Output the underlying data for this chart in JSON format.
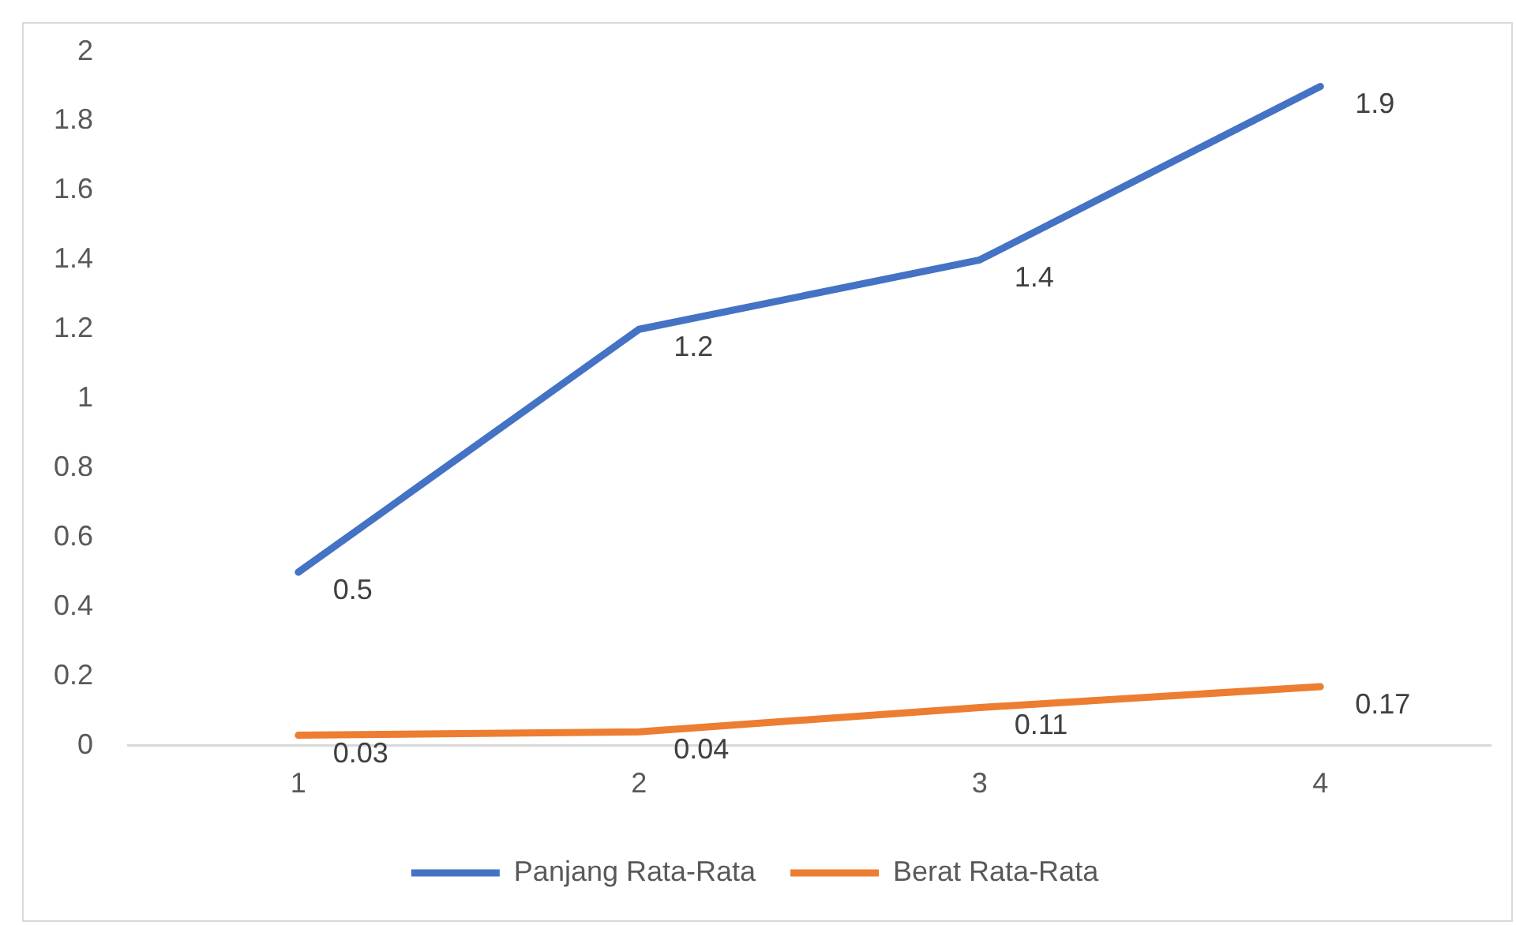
{
  "chart_data": {
    "type": "line",
    "categories": [
      "1",
      "2",
      "3",
      "4"
    ],
    "series": [
      {
        "name": "Panjang Rata-Rata",
        "color": "#4472c4",
        "values": [
          0.5,
          1.2,
          1.4,
          1.9
        ]
      },
      {
        "name": "Berat Rata-Rata",
        "color": "#ed7d31",
        "values": [
          0.03,
          0.04,
          0.11,
          0.17
        ]
      }
    ],
    "ylim": [
      0,
      2
    ],
    "yticks": [
      0,
      0.2,
      0.4,
      0.6,
      0.8,
      1,
      1.2,
      1.4,
      1.6,
      1.8,
      2
    ],
    "grid": false,
    "legend": "bottom",
    "marker": "none",
    "line_style": "solid",
    "data_labels": true
  }
}
